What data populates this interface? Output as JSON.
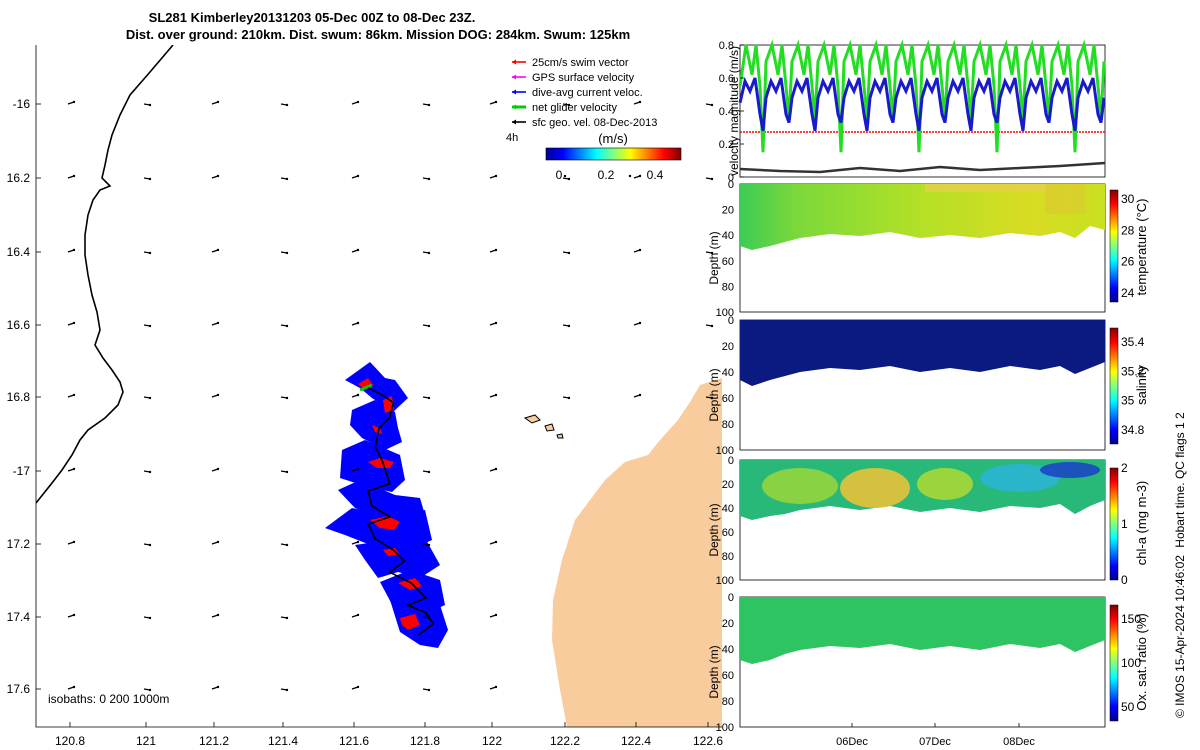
{
  "title_line1": "SL281 Kimberley20131203 05-Dec 00Z to 08-Dec 23Z.",
  "title_line2": "Dist. over ground: 210km. Dist. swum: 86km. Mission DOG: 284km. Swum: 125km",
  "map": {
    "lon_ticks": [
      "120.8",
      "121",
      "121.2",
      "121.4",
      "121.6",
      "121.8",
      "122",
      "122.2",
      "122.4",
      "122.6"
    ],
    "lat_ticks": [
      "-16",
      "16.2",
      "16.4",
      "16.6",
      "16.8",
      "-17",
      "17.2",
      "17.4",
      "17.6"
    ],
    "isobath_label": "isobaths: 0   200  1000m",
    "time_label": "4h",
    "legend": [
      {
        "label": "25cm/s swim vector",
        "color": "#ff0000"
      },
      {
        "label": "GPS surface velocity",
        "color": "#ff00ff"
      },
      {
        "label": "dive-avg current veloc.",
        "color": "#0000ff"
      },
      {
        "label": "net glider velocity",
        "color": "#00cc00"
      },
      {
        "label": "sfc geo. vel. 08-Dec-2013",
        "color": "#000000"
      }
    ],
    "colorbar": {
      "unit": "(m/s)",
      "ticks": [
        "0",
        "0.2",
        "0.4"
      ]
    },
    "colors": {
      "land": "#f9cc9e",
      "swath": "#0000ff",
      "swim": "#ff0000",
      "track": "#000000"
    }
  },
  "right_panels": {
    "velocity": {
      "ylabel": "velocity magnitude (m/s)",
      "yticks": [
        "0",
        "0.2",
        "0.4",
        "0.6",
        "0.8"
      ],
      "series": [
        {
          "name": "net glider velocity",
          "color": "#22dd22"
        },
        {
          "name": "dive-avg current veloc.",
          "color": "#1a1acc"
        },
        {
          "name": "25cm/s swim vector",
          "color": "#ff0000"
        },
        {
          "name": "sfc geo. vel.",
          "color": "#333333"
        }
      ]
    },
    "depth_ylabel": "Depth (m)",
    "depth_ticks": [
      "0",
      "20",
      "40",
      "60",
      "80",
      "100"
    ],
    "date_ticks": [
      "06Dec",
      "07Dec",
      "08Dec"
    ],
    "temperature": {
      "label": "temperature (°C)",
      "ticks": [
        "24",
        "26",
        "28",
        "30"
      ]
    },
    "salinity": {
      "label": "salinity",
      "ticks": [
        "34.8",
        "35",
        "35.2",
        "35.4"
      ]
    },
    "chla": {
      "label": "chl-a (mg m-3)",
      "ticks": [
        "0",
        "1",
        "2"
      ]
    },
    "oxygen": {
      "label": "Ox. sat. ratio (%)",
      "ticks": [
        "50",
        "100",
        "150"
      ]
    }
  },
  "qc_note": "Hobart time. QC flags 1 2",
  "credit": "© IMOS 15-Apr-2024 10:46:02",
  "chart_data": {
    "type": "scatter",
    "title": "SL281 Kimberley20131203 05-Dec 00Z to 08-Dec 23Z.",
    "xlabel": "",
    "ylabel": "",
    "xlim": [
      120.7,
      122.6
    ],
    "ylim": [
      -17.7,
      -15.85
    ],
    "glider_track": {
      "lon": [
        121.62,
        121.66,
        121.69,
        121.68,
        121.65,
        121.64,
        121.66,
        121.68,
        121.62,
        121.63,
        121.68,
        121.62,
        121.64,
        121.69,
        121.72,
        121.68,
        121.74,
        121.78,
        121.73,
        121.78,
        121.8,
        121.76
      ],
      "lat": [
        -16.78,
        -16.8,
        -16.82,
        -16.86,
        -16.89,
        -16.94,
        -16.98,
        -17.04,
        -17.06,
        -17.1,
        -17.13,
        -17.15,
        -17.19,
        -17.22,
        -17.25,
        -17.28,
        -17.31,
        -17.35,
        -17.37,
        -17.39,
        -17.42,
        -17.45
      ]
    }
  }
}
